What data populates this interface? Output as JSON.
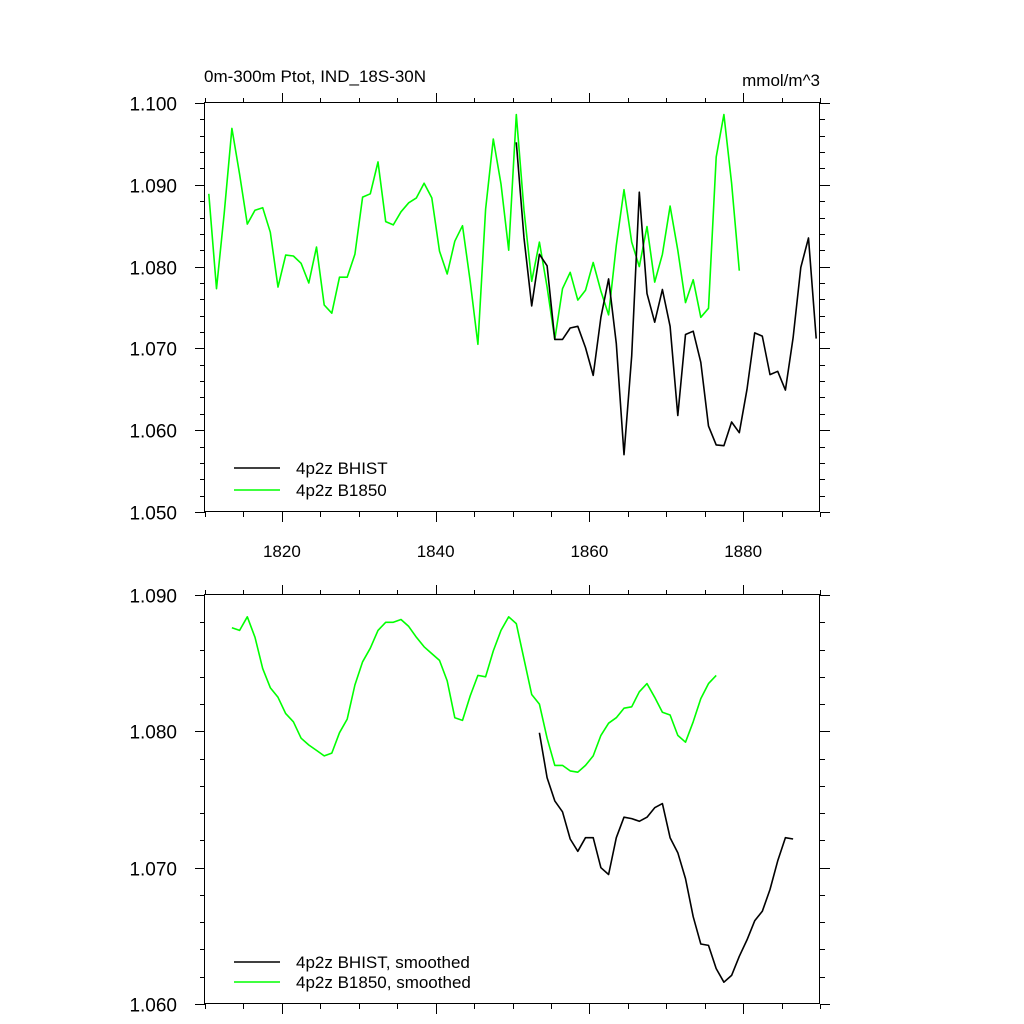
{
  "colors": {
    "bhist": "#000000",
    "b1850": "#00ff00",
    "axis": "#000000",
    "background": "#ffffff"
  },
  "chart_data": [
    {
      "type": "line",
      "title": "0m-300m Ptot, IND_18S-30N",
      "units": "mmol/m^3",
      "xlim": [
        1810,
        1890
      ],
      "ylim": [
        1.05,
        1.1
      ],
      "yticks": [
        1.05,
        1.06,
        1.07,
        1.08,
        1.09,
        1.1
      ],
      "ytick_labels": [
        "1.050",
        "1.060",
        "1.070",
        "1.080",
        "1.090",
        "1.100"
      ],
      "xticks": [
        1820,
        1840,
        1860,
        1880
      ],
      "xtick_labels": [
        "1820",
        "1840",
        "1860",
        "1880"
      ],
      "grid": false,
      "legend_position": "bottom-left",
      "series": [
        {
          "name": "4p2z BHIST",
          "color": "#000000",
          "x": [
            1850.5,
            1851.5,
            1852.5,
            1853.5,
            1854.5,
            1855.5,
            1856.5,
            1857.5,
            1858.5,
            1859.5,
            1860.5,
            1861.5,
            1862.5,
            1863.5,
            1864.5,
            1865.5,
            1866.5,
            1867.5,
            1868.5,
            1869.5,
            1870.5,
            1871.5,
            1872.5,
            1873.5,
            1874.5,
            1875.5,
            1876.5,
            1877.5,
            1878.5,
            1879.5,
            1880.5,
            1881.5,
            1882.5,
            1883.5,
            1884.5,
            1885.5,
            1886.5,
            1887.5,
            1888.5,
            1889.5
          ],
          "y": [
            1.0952,
            1.0835,
            1.0752,
            1.0815,
            1.0801,
            1.0711,
            1.0711,
            1.0725,
            1.0727,
            1.0701,
            1.0667,
            1.0738,
            1.0785,
            1.0706,
            1.057,
            1.0691,
            1.0891,
            1.0767,
            1.0732,
            1.0772,
            1.0727,
            1.0618,
            1.0717,
            1.0721,
            1.0683,
            1.0605,
            1.0582,
            1.0581,
            1.061,
            1.0597,
            1.065,
            1.0719,
            1.0715,
            1.0668,
            1.0672,
            1.0649,
            1.0713,
            1.0799,
            1.0835,
            1.0712
          ]
        },
        {
          "name": "4p2z B1850",
          "color": "#00ff00",
          "x": [
            1810.5,
            1811.5,
            1812.5,
            1813.5,
            1814.5,
            1815.5,
            1816.5,
            1817.5,
            1818.5,
            1819.5,
            1820.5,
            1821.5,
            1822.5,
            1823.5,
            1824.5,
            1825.5,
            1826.5,
            1827.5,
            1828.5,
            1829.5,
            1830.5,
            1831.5,
            1832.5,
            1833.5,
            1834.5,
            1835.5,
            1836.5,
            1837.5,
            1838.5,
            1839.5,
            1840.5,
            1841.5,
            1842.5,
            1843.5,
            1844.5,
            1845.5,
            1846.5,
            1847.5,
            1848.5,
            1849.5,
            1850.5,
            1851.5,
            1852.5,
            1853.5,
            1854.5,
            1855.5,
            1856.5,
            1857.5,
            1858.5,
            1859.5,
            1860.5,
            1861.5,
            1862.5,
            1863.5,
            1864.5,
            1865.5,
            1866.5,
            1867.5,
            1868.5,
            1869.5,
            1870.5,
            1871.5,
            1872.5,
            1873.5,
            1874.5,
            1875.5,
            1876.5,
            1877.5,
            1878.5,
            1879.5
          ],
          "y": [
            1.0889,
            1.0773,
            1.0865,
            1.0969,
            1.0913,
            1.0852,
            1.0869,
            1.0872,
            1.0842,
            1.0775,
            1.0814,
            1.0813,
            1.0804,
            1.078,
            1.0824,
            1.0753,
            1.0743,
            1.0787,
            1.0787,
            1.0815,
            1.0885,
            1.0889,
            1.0928,
            1.0855,
            1.0851,
            1.0867,
            1.0878,
            1.0884,
            1.0902,
            1.0884,
            1.0819,
            1.0791,
            1.0831,
            1.085,
            1.0782,
            1.0705,
            1.087,
            1.0956,
            1.0901,
            1.082,
            1.0986,
            1.0869,
            1.0782,
            1.083,
            1.0775,
            1.0711,
            1.0773,
            1.0793,
            1.0759,
            1.0771,
            1.0805,
            1.077,
            1.0741,
            1.0826,
            1.0894,
            1.083,
            1.08,
            1.0849,
            1.0781,
            1.0815,
            1.0874,
            1.082,
            1.0756,
            1.0784,
            1.0738,
            1.0749,
            1.0934,
            1.0986,
            1.0902,
            1.0795
          ]
        }
      ]
    },
    {
      "type": "line",
      "xlim": [
        1810,
        1890
      ],
      "ylim": [
        1.06,
        1.09
      ],
      "yticks": [
        1.06,
        1.07,
        1.08,
        1.09
      ],
      "ytick_labels": [
        "1.060",
        "1.070",
        "1.080",
        "1.090"
      ],
      "xticks": [
        1820,
        1840,
        1860,
        1880
      ],
      "grid": false,
      "legend_position": "bottom-left",
      "series": [
        {
          "name": "4p2z BHIST, smoothed",
          "color": "#000000",
          "x": [
            1853.5,
            1854.5,
            1855.5,
            1856.5,
            1857.5,
            1858.5,
            1859.5,
            1860.5,
            1861.5,
            1862.5,
            1863.5,
            1864.5,
            1865.5,
            1866.5,
            1867.5,
            1868.5,
            1869.5,
            1870.5,
            1871.5,
            1872.5,
            1873.5,
            1874.5,
            1875.5,
            1876.5,
            1877.5,
            1878.5,
            1879.5,
            1880.5,
            1881.5,
            1882.5,
            1883.5,
            1884.5,
            1885.5,
            1886.5
          ],
          "y": [
            1.0799,
            1.0766,
            1.0749,
            1.0741,
            1.0721,
            1.0712,
            1.0722,
            1.0722,
            1.07,
            1.0695,
            1.0722,
            1.0737,
            1.0736,
            1.0734,
            1.0737,
            1.0744,
            1.0747,
            1.0722,
            1.0711,
            1.0692,
            1.0664,
            1.0644,
            1.0643,
            1.0626,
            1.0616,
            1.0621,
            1.0635,
            1.0647,
            1.0661,
            1.0668,
            1.0684,
            1.0705,
            1.0722,
            1.0721
          ]
        },
        {
          "name": "4p2z B1850, smoothed",
          "color": "#00ff00",
          "x": [
            1813.5,
            1814.5,
            1815.5,
            1816.5,
            1817.5,
            1818.5,
            1819.5,
            1820.5,
            1821.5,
            1822.5,
            1823.5,
            1824.5,
            1825.5,
            1826.5,
            1827.5,
            1828.5,
            1829.5,
            1830.5,
            1831.5,
            1832.5,
            1833.5,
            1834.5,
            1835.5,
            1836.5,
            1837.5,
            1838.5,
            1839.5,
            1840.5,
            1841.5,
            1842.5,
            1843.5,
            1844.5,
            1845.5,
            1846.5,
            1847.5,
            1848.5,
            1849.5,
            1850.5,
            1851.5,
            1852.5,
            1853.5,
            1854.5,
            1855.5,
            1856.5,
            1857.5,
            1858.5,
            1859.5,
            1860.5,
            1861.5,
            1862.5,
            1863.5,
            1864.5,
            1865.5,
            1866.5,
            1867.5,
            1868.5,
            1869.5,
            1870.5,
            1871.5,
            1872.5,
            1873.5,
            1874.5,
            1875.5,
            1876.5
          ],
          "y": [
            1.0876,
            1.0874,
            1.0884,
            1.0869,
            1.0846,
            1.0832,
            1.0825,
            1.0813,
            1.0807,
            1.0795,
            1.079,
            1.0786,
            1.0782,
            1.0784,
            1.0799,
            1.0809,
            1.0834,
            1.0851,
            1.0861,
            1.0874,
            1.088,
            1.088,
            1.0882,
            1.0877,
            1.0869,
            1.0862,
            1.0857,
            1.0852,
            1.0837,
            1.081,
            1.0808,
            1.0826,
            1.0841,
            1.084,
            1.0859,
            1.0874,
            1.0884,
            1.0879,
            1.0853,
            1.0827,
            1.082,
            1.0795,
            1.0775,
            1.0775,
            1.0771,
            1.077,
            1.0775,
            1.0782,
            1.0797,
            1.0806,
            1.081,
            1.0817,
            1.0818,
            1.0829,
            1.0835,
            1.0825,
            1.0814,
            1.0812,
            1.0797,
            1.0792,
            1.0807,
            1.0824,
            1.0835,
            1.0841
          ]
        }
      ]
    }
  ]
}
